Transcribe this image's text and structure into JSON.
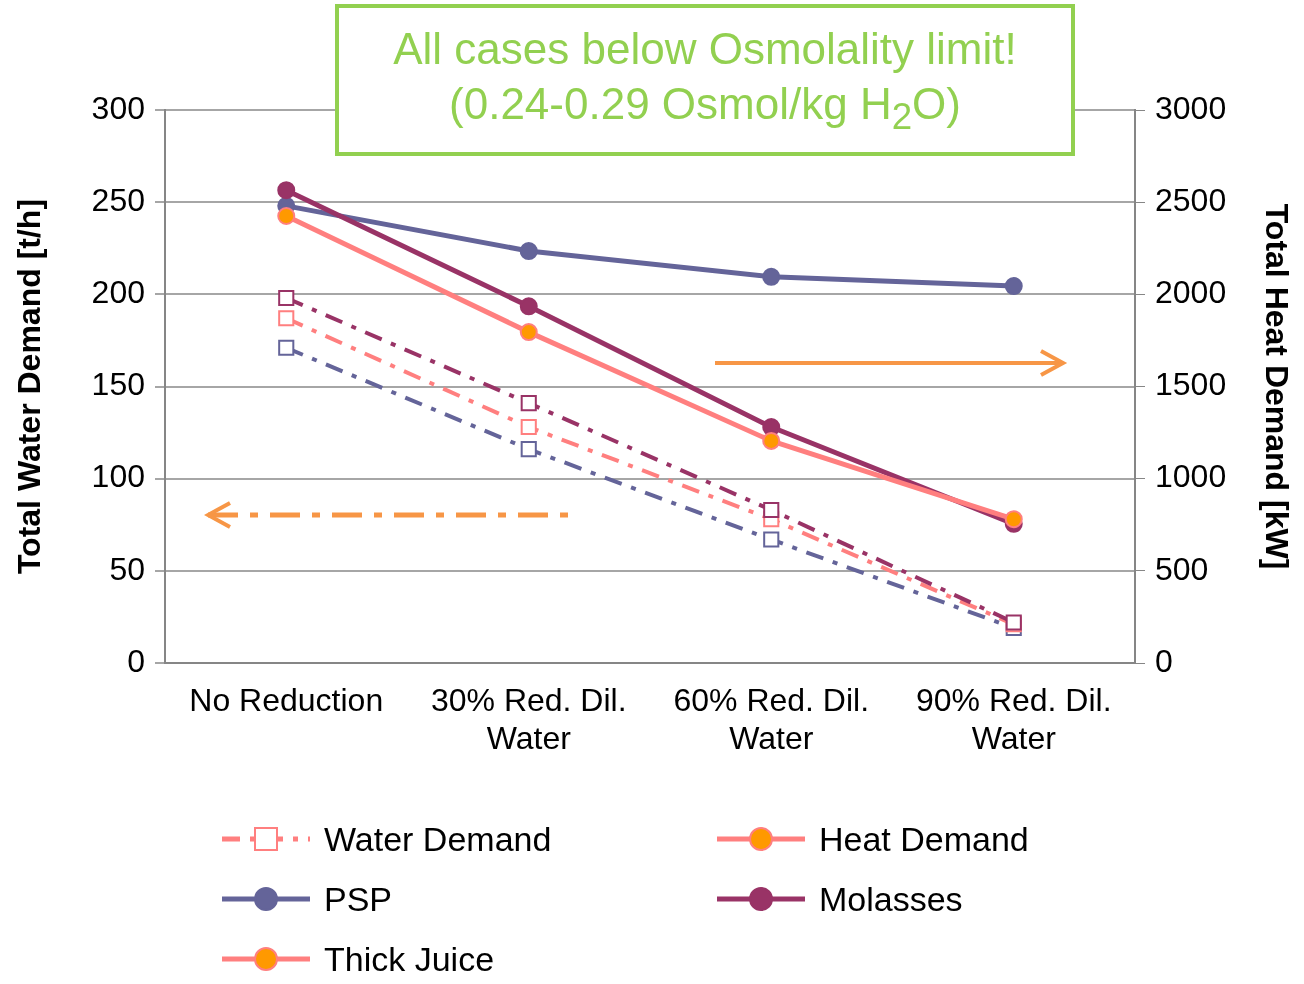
{
  "chart_data": {
    "type": "line",
    "title": "All cases below Osmolality limit!\n(0.24-0.29 Osmol/kg H$_{2}$O)",
    "ylabel": "Total Water Demand [t/h]",
    "y2label": "Total Heat Demand [kW]",
    "categories": [
      "No Reduction",
      "30% Red. Dil. Water",
      "60% Red. Dil. Water",
      "90% Red. Dil. Water"
    ],
    "ylim": [
      0,
      300
    ],
    "yticks": [
      0,
      50,
      100,
      150,
      200,
      250,
      300
    ],
    "y2lim": [
      0,
      3000
    ],
    "y2ticks": [
      0,
      500,
      1000,
      1500,
      2000,
      2500,
      3000
    ],
    "grid": "y",
    "legend": "bottom",
    "series": [
      {
        "name": "Water Demand",
        "color": "#ff7f7f",
        "values": [
          null,
          null,
          null,
          null
        ],
        "line_style": "dashed",
        "marker": "square",
        "axis": "y"
      },
      {
        "name": "Heat Demand",
        "color": "#ff7f7f",
        "colors": [
          "#ff9900",
          "#ff9900",
          "#ff9900",
          "#ff9900"
        ],
        "values": [
          null,
          null,
          null,
          null
        ],
        "line_style": "solid",
        "marker": "circle",
        "axis": "y2"
      },
      {
        "name": "PSP",
        "color": "#646499",
        "values": [
          2480,
          2235,
          2095,
          2045
        ],
        "line_style": "solid",
        "marker": "circle",
        "axis": "y2"
      },
      {
        "name": "Molasses",
        "color": "#993366",
        "values": [
          2565,
          1935,
          1280,
          755
        ],
        "line_style": "solid",
        "marker": "circle",
        "axis": "y2"
      },
      {
        "name": "Thick Juice",
        "color": "#ff7f7f",
        "colors": [
          "#ff9900",
          "#ff9900",
          "#ff9900",
          "#ff9900"
        ],
        "values": [
          2425,
          1795,
          1205,
          780
        ],
        "line_style": "solid",
        "marker": "circle",
        "axis": "y2"
      },
      {
        "color": "#646499",
        "values": [
          171,
          116,
          67,
          19
        ],
        "line_style": "dashed",
        "marker": "square",
        "axis": "y"
      },
      {
        "color": "#ff7f7f",
        "values": [
          187,
          128,
          78,
          21
        ],
        "line_style": "dashed",
        "marker": "square",
        "axis": "y"
      },
      {
        "color": "#993366",
        "values": [
          198,
          141,
          83,
          22
        ],
        "line_style": "dashed",
        "marker": "square",
        "axis": "y"
      }
    ]
  }
}
